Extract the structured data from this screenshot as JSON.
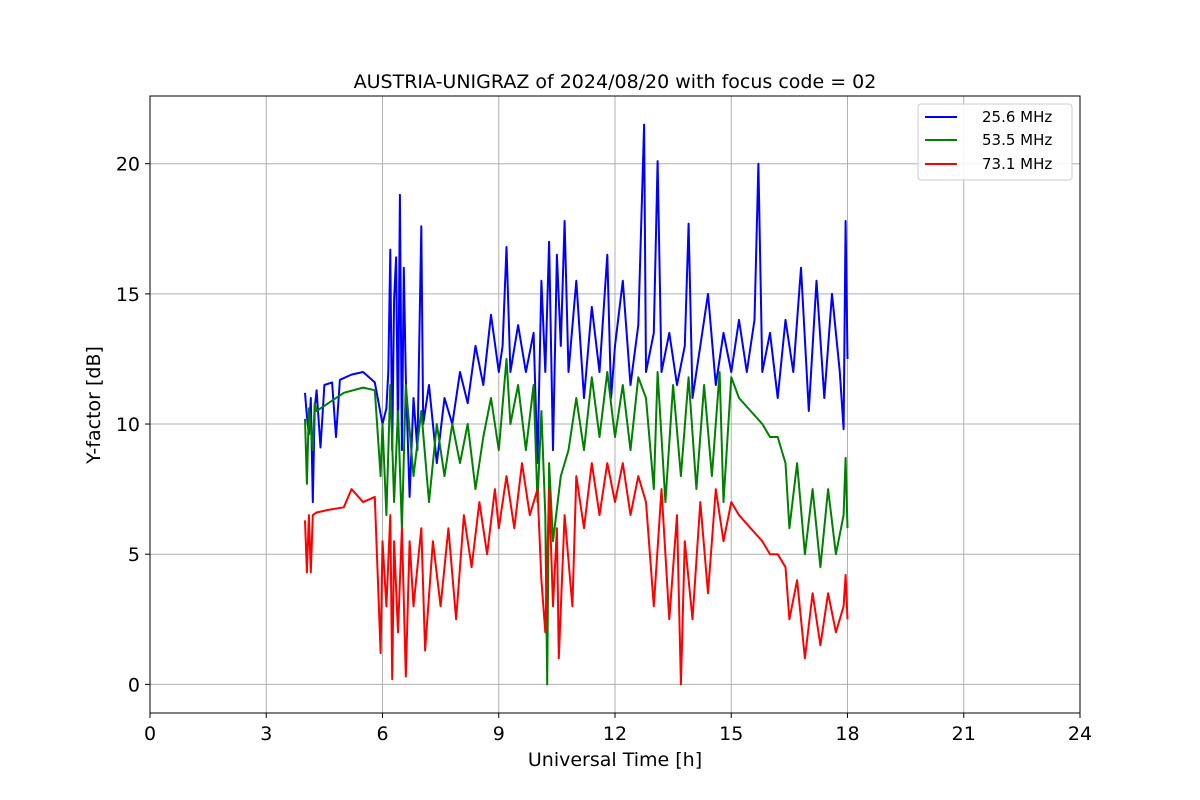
{
  "chart_data": {
    "type": "line",
    "title": "AUSTRIA-UNIGRAZ of 2024/08/20 with focus code = 02",
    "xlabel": "Universal Time [h]",
    "ylabel": "Y-factor [dB]",
    "xlim": [
      0,
      24
    ],
    "ylim": [
      -1.1,
      22.6
    ],
    "xticks": [
      0,
      3,
      6,
      9,
      12,
      15,
      18,
      21,
      24
    ],
    "yticks": [
      0,
      5,
      10,
      15,
      20
    ],
    "grid": true,
    "legend_position": "top-right",
    "series": [
      {
        "name": "25.6 MHz",
        "color": "#0000ff",
        "points": [
          [
            4.0,
            11.2
          ],
          [
            4.05,
            10.3
          ],
          [
            4.1,
            9.6
          ],
          [
            4.15,
            11.0
          ],
          [
            4.2,
            7.0
          ],
          [
            4.25,
            10.6
          ],
          [
            4.3,
            11.3
          ],
          [
            4.4,
            9.1
          ],
          [
            4.5,
            11.5
          ],
          [
            4.7,
            11.6
          ],
          [
            4.8,
            9.5
          ],
          [
            4.9,
            11.7
          ],
          [
            5.2,
            11.9
          ],
          [
            5.5,
            12.0
          ],
          [
            5.8,
            11.6
          ],
          [
            6.0,
            10.0
          ],
          [
            6.1,
            10.6
          ],
          [
            6.15,
            12.0
          ],
          [
            6.2,
            16.7
          ],
          [
            6.25,
            9.0
          ],
          [
            6.3,
            14.8
          ],
          [
            6.35,
            16.4
          ],
          [
            6.4,
            9.5
          ],
          [
            6.45,
            18.8
          ],
          [
            6.5,
            9.0
          ],
          [
            6.55,
            16.0
          ],
          [
            6.6,
            11.8
          ],
          [
            6.7,
            7.2
          ],
          [
            6.8,
            11.0
          ],
          [
            6.9,
            9.0
          ],
          [
            7.0,
            17.6
          ],
          [
            7.05,
            10.0
          ],
          [
            7.2,
            11.5
          ],
          [
            7.4,
            8.5
          ],
          [
            7.6,
            11.0
          ],
          [
            7.8,
            10.0
          ],
          [
            8.0,
            12.0
          ],
          [
            8.2,
            10.8
          ],
          [
            8.4,
            13.0
          ],
          [
            8.6,
            11.5
          ],
          [
            8.8,
            14.2
          ],
          [
            9.0,
            12.0
          ],
          [
            9.1,
            13.0
          ],
          [
            9.2,
            16.8
          ],
          [
            9.3,
            12.0
          ],
          [
            9.5,
            13.8
          ],
          [
            9.7,
            12.0
          ],
          [
            9.9,
            13.5
          ],
          [
            10.0,
            8.5
          ],
          [
            10.1,
            15.5
          ],
          [
            10.2,
            12.0
          ],
          [
            10.3,
            17.0
          ],
          [
            10.4,
            9.0
          ],
          [
            10.5,
            16.5
          ],
          [
            10.6,
            13.0
          ],
          [
            10.7,
            17.8
          ],
          [
            10.8,
            12.0
          ],
          [
            11.0,
            15.5
          ],
          [
            11.2,
            11.0
          ],
          [
            11.4,
            14.5
          ],
          [
            11.6,
            12.0
          ],
          [
            11.8,
            16.5
          ],
          [
            11.9,
            11.0
          ],
          [
            12.0,
            13.0
          ],
          [
            12.2,
            15.5
          ],
          [
            12.4,
            11.5
          ],
          [
            12.6,
            13.8
          ],
          [
            12.75,
            21.5
          ],
          [
            12.8,
            12.0
          ],
          [
            13.0,
            13.5
          ],
          [
            13.1,
            20.1
          ],
          [
            13.2,
            12.0
          ],
          [
            13.4,
            13.5
          ],
          [
            13.6,
            11.5
          ],
          [
            13.8,
            13.0
          ],
          [
            13.9,
            17.7
          ],
          [
            14.0,
            11.0
          ],
          [
            14.2,
            13.0
          ],
          [
            14.4,
            15.0
          ],
          [
            14.6,
            11.5
          ],
          [
            14.8,
            13.5
          ],
          [
            15.0,
            12.0
          ],
          [
            15.2,
            14.0
          ],
          [
            15.4,
            12.0
          ],
          [
            15.6,
            14.0
          ],
          [
            15.7,
            20.0
          ],
          [
            15.8,
            12.0
          ],
          [
            16.0,
            13.5
          ],
          [
            16.2,
            11.0
          ],
          [
            16.4,
            14.0
          ],
          [
            16.6,
            12.0
          ],
          [
            16.8,
            16.0
          ],
          [
            17.0,
            10.5
          ],
          [
            17.2,
            15.5
          ],
          [
            17.4,
            11.0
          ],
          [
            17.6,
            15.0
          ],
          [
            17.8,
            12.0
          ],
          [
            17.9,
            9.8
          ],
          [
            17.95,
            17.8
          ],
          [
            18.0,
            12.5
          ]
        ]
      },
      {
        "name": "53.5 MHz",
        "color": "#008000",
        "points": [
          [
            4.0,
            10.2
          ],
          [
            4.05,
            7.7
          ],
          [
            4.1,
            10.6
          ],
          [
            4.2,
            9.0
          ],
          [
            4.25,
            10.8
          ],
          [
            4.3,
            10.5
          ],
          [
            4.6,
            10.8
          ],
          [
            5.0,
            11.2
          ],
          [
            5.5,
            11.4
          ],
          [
            5.8,
            11.3
          ],
          [
            5.95,
            8.0
          ],
          [
            6.0,
            10.0
          ],
          [
            6.1,
            6.5
          ],
          [
            6.2,
            11.5
          ],
          [
            6.3,
            7.0
          ],
          [
            6.4,
            10.5
          ],
          [
            6.5,
            6.0
          ],
          [
            6.6,
            11.5
          ],
          [
            6.8,
            8.0
          ],
          [
            7.0,
            10.5
          ],
          [
            7.2,
            7.0
          ],
          [
            7.4,
            10.0
          ],
          [
            7.6,
            8.0
          ],
          [
            7.8,
            10.0
          ],
          [
            8.0,
            8.5
          ],
          [
            8.2,
            10.0
          ],
          [
            8.4,
            7.5
          ],
          [
            8.6,
            9.5
          ],
          [
            8.8,
            11.0
          ],
          [
            9.0,
            9.0
          ],
          [
            9.2,
            12.5
          ],
          [
            9.3,
            10.0
          ],
          [
            9.5,
            11.5
          ],
          [
            9.7,
            9.0
          ],
          [
            9.9,
            11.5
          ],
          [
            10.0,
            7.0
          ],
          [
            10.1,
            10.5
          ],
          [
            10.2,
            6.5
          ],
          [
            10.25,
            0.0
          ],
          [
            10.3,
            8.5
          ],
          [
            10.4,
            5.5
          ],
          [
            10.6,
            8.0
          ],
          [
            10.8,
            9.0
          ],
          [
            11.0,
            11.0
          ],
          [
            11.2,
            9.0
          ],
          [
            11.4,
            11.8
          ],
          [
            11.6,
            9.5
          ],
          [
            11.8,
            12.0
          ],
          [
            12.0,
            9.5
          ],
          [
            12.2,
            11.5
          ],
          [
            12.4,
            9.0
          ],
          [
            12.6,
            11.8
          ],
          [
            12.8,
            11.0
          ],
          [
            13.0,
            7.5
          ],
          [
            13.1,
            12.0
          ],
          [
            13.3,
            7.0
          ],
          [
            13.5,
            11.5
          ],
          [
            13.7,
            8.0
          ],
          [
            13.9,
            11.8
          ],
          [
            14.1,
            7.5
          ],
          [
            14.3,
            11.5
          ],
          [
            14.5,
            8.0
          ],
          [
            14.7,
            12.0
          ],
          [
            14.8,
            7.0
          ],
          [
            15.0,
            11.8
          ],
          [
            15.2,
            11.0
          ],
          [
            15.5,
            10.5
          ],
          [
            15.8,
            10.0
          ],
          [
            16.0,
            9.5
          ],
          [
            16.2,
            9.5
          ],
          [
            16.4,
            8.5
          ],
          [
            16.5,
            6.0
          ],
          [
            16.7,
            8.5
          ],
          [
            16.9,
            5.0
          ],
          [
            17.1,
            7.5
          ],
          [
            17.3,
            4.5
          ],
          [
            17.5,
            7.5
          ],
          [
            17.7,
            5.0
          ],
          [
            17.9,
            6.5
          ],
          [
            17.95,
            8.7
          ],
          [
            18.0,
            6.0
          ]
        ]
      },
      {
        "name": "73.1 MHz",
        "color": "#ff0000",
        "points": [
          [
            4.0,
            6.3
          ],
          [
            4.05,
            4.3
          ],
          [
            4.1,
            6.5
          ],
          [
            4.15,
            4.3
          ],
          [
            4.2,
            6.5
          ],
          [
            4.3,
            6.6
          ],
          [
            4.6,
            6.7
          ],
          [
            5.0,
            6.8
          ],
          [
            5.2,
            7.5
          ],
          [
            5.5,
            7.0
          ],
          [
            5.8,
            7.2
          ],
          [
            5.95,
            1.2
          ],
          [
            6.0,
            5.5
          ],
          [
            6.1,
            3.0
          ],
          [
            6.2,
            6.5
          ],
          [
            6.25,
            0.2
          ],
          [
            6.3,
            5.5
          ],
          [
            6.4,
            2.0
          ],
          [
            6.5,
            6.0
          ],
          [
            6.6,
            0.3
          ],
          [
            6.7,
            5.5
          ],
          [
            6.8,
            3.0
          ],
          [
            7.0,
            6.0
          ],
          [
            7.1,
            1.3
          ],
          [
            7.3,
            5.5
          ],
          [
            7.5,
            3.0
          ],
          [
            7.7,
            6.0
          ],
          [
            7.9,
            2.5
          ],
          [
            8.1,
            6.5
          ],
          [
            8.3,
            4.5
          ],
          [
            8.5,
            7.0
          ],
          [
            8.7,
            5.0
          ],
          [
            8.9,
            7.5
          ],
          [
            9.0,
            6.0
          ],
          [
            9.2,
            8.0
          ],
          [
            9.4,
            6.0
          ],
          [
            9.6,
            8.5
          ],
          [
            9.8,
            6.5
          ],
          [
            10.0,
            7.5
          ],
          [
            10.1,
            4.0
          ],
          [
            10.2,
            2.0
          ],
          [
            10.3,
            7.5
          ],
          [
            10.4,
            3.0
          ],
          [
            10.5,
            6.0
          ],
          [
            10.55,
            1.0
          ],
          [
            10.7,
            6.5
          ],
          [
            10.9,
            3.0
          ],
          [
            11.0,
            8.0
          ],
          [
            11.2,
            6.0
          ],
          [
            11.4,
            8.5
          ],
          [
            11.6,
            6.5
          ],
          [
            11.8,
            8.5
          ],
          [
            12.0,
            7.0
          ],
          [
            12.2,
            8.5
          ],
          [
            12.4,
            6.5
          ],
          [
            12.6,
            8.0
          ],
          [
            12.8,
            7.0
          ],
          [
            13.0,
            3.0
          ],
          [
            13.2,
            7.5
          ],
          [
            13.4,
            2.5
          ],
          [
            13.6,
            6.5
          ],
          [
            13.7,
            0.0
          ],
          [
            13.8,
            5.5
          ],
          [
            14.0,
            2.5
          ],
          [
            14.2,
            7.0
          ],
          [
            14.4,
            3.5
          ],
          [
            14.6,
            7.5
          ],
          [
            14.8,
            5.5
          ],
          [
            15.0,
            7.0
          ],
          [
            15.2,
            6.5
          ],
          [
            15.5,
            6.0
          ],
          [
            15.8,
            5.5
          ],
          [
            16.0,
            5.0
          ],
          [
            16.2,
            5.0
          ],
          [
            16.4,
            4.5
          ],
          [
            16.5,
            2.5
          ],
          [
            16.7,
            4.0
          ],
          [
            16.9,
            1.0
          ],
          [
            17.1,
            3.5
          ],
          [
            17.3,
            1.5
          ],
          [
            17.5,
            3.5
          ],
          [
            17.7,
            2.0
          ],
          [
            17.9,
            3.0
          ],
          [
            17.95,
            4.2
          ],
          [
            18.0,
            2.5
          ]
        ]
      }
    ]
  }
}
